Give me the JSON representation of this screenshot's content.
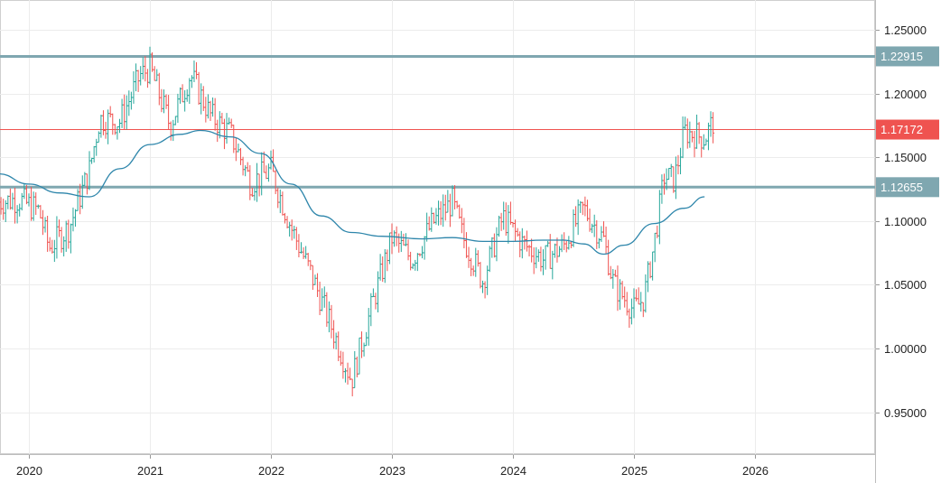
{
  "chart_data": {
    "type": "candlestick",
    "title": "",
    "xlabel": "",
    "ylabel": "",
    "ylim": [
      0.915,
      1.265
    ],
    "x_ticks": [
      "2020",
      "2021",
      "2022",
      "2023",
      "2024",
      "2025",
      "2026"
    ],
    "y_ticks": [
      "1.25000",
      "1.20000",
      "1.15000",
      "1.10000",
      "1.05000",
      "1.00000",
      "0.95000"
    ],
    "y_tick_values": [
      1.25,
      1.2,
      1.15,
      1.1,
      1.05,
      1.0,
      0.95
    ],
    "grid": true,
    "colors": {
      "up": "#26a69a",
      "down": "#ef5350",
      "ma": "#2e86ab",
      "level": "#7fa7b0",
      "price": "#ef5350"
    },
    "levels": [
      {
        "value": 1.22915,
        "label": "1.22915",
        "kind": "resistance"
      },
      {
        "value": 1.12655,
        "label": "1.12655",
        "kind": "support"
      }
    ],
    "current_price": {
      "value": 1.17172,
      "label": "1.17172"
    },
    "moving_average": [
      [
        "2019-10",
        1.137
      ],
      [
        "2020-01",
        1.129
      ],
      [
        "2020-04",
        1.122
      ],
      [
        "2020-07",
        1.119
      ],
      [
        "2020-10",
        1.141
      ],
      [
        "2021-01",
        1.16
      ],
      [
        "2021-04",
        1.168
      ],
      [
        "2021-06",
        1.171
      ],
      [
        "2021-09",
        1.166
      ],
      [
        "2021-12",
        1.153
      ],
      [
        "2022-03",
        1.129
      ],
      [
        "2022-06",
        1.104
      ],
      [
        "2022-09",
        1.091
      ],
      [
        "2022-12",
        1.088
      ],
      [
        "2023-04",
        1.086
      ],
      [
        "2023-07",
        1.087
      ],
      [
        "2023-10",
        1.084
      ],
      [
        "2024-01",
        1.084
      ],
      [
        "2024-04",
        1.085
      ],
      [
        "2024-06",
        1.085
      ],
      [
        "2024-08",
        1.082
      ],
      [
        "2024-10",
        1.074
      ],
      [
        "2024-12",
        1.081
      ],
      [
        "2025-03",
        1.098
      ],
      [
        "2025-06",
        1.11
      ],
      [
        "2025-08",
        1.119
      ]
    ],
    "price_path": [
      [
        "2019-10",
        1.115
      ],
      [
        "2019-12",
        1.117
      ],
      [
        "2020-02",
        1.108
      ],
      [
        "2020-03",
        1.079
      ],
      [
        "2020-05",
        1.095
      ],
      [
        "2020-07",
        1.14
      ],
      [
        "2020-08",
        1.18
      ],
      [
        "2020-10",
        1.178
      ],
      [
        "2020-12",
        1.214
      ],
      [
        "2021-01",
        1.22
      ],
      [
        "2021-03",
        1.175
      ],
      [
        "2021-05",
        1.215
      ],
      [
        "2021-07",
        1.183
      ],
      [
        "2021-09",
        1.168
      ],
      [
        "2021-11",
        1.13
      ],
      [
        "2022-01",
        1.14
      ],
      [
        "2022-03",
        1.095
      ],
      [
        "2022-05",
        1.058
      ],
      [
        "2022-07",
        1.017
      ],
      [
        "2022-09",
        0.975
      ],
      [
        "2022-11",
        1.033
      ],
      [
        "2023-01",
        1.087
      ],
      [
        "2023-03",
        1.07
      ],
      [
        "2023-05",
        1.098
      ],
      [
        "2023-07",
        1.115
      ],
      [
        "2023-08",
        1.088
      ],
      [
        "2023-10",
        1.053
      ],
      [
        "2023-12",
        1.103
      ],
      [
        "2024-02",
        1.082
      ],
      [
        "2024-04",
        1.07
      ],
      [
        "2024-06",
        1.08
      ],
      [
        "2024-08",
        1.11
      ],
      [
        "2024-10",
        1.085
      ],
      [
        "2024-11",
        1.05
      ],
      [
        "2025-01",
        1.03
      ],
      [
        "2025-02",
        1.04
      ],
      [
        "2025-03",
        1.082
      ],
      [
        "2025-04",
        1.135
      ],
      [
        "2025-05",
        1.132
      ],
      [
        "2025-06",
        1.17
      ],
      [
        "2025-07",
        1.168
      ],
      [
        "2025-08",
        1.165
      ],
      [
        "2025-09",
        1.18
      ]
    ]
  }
}
